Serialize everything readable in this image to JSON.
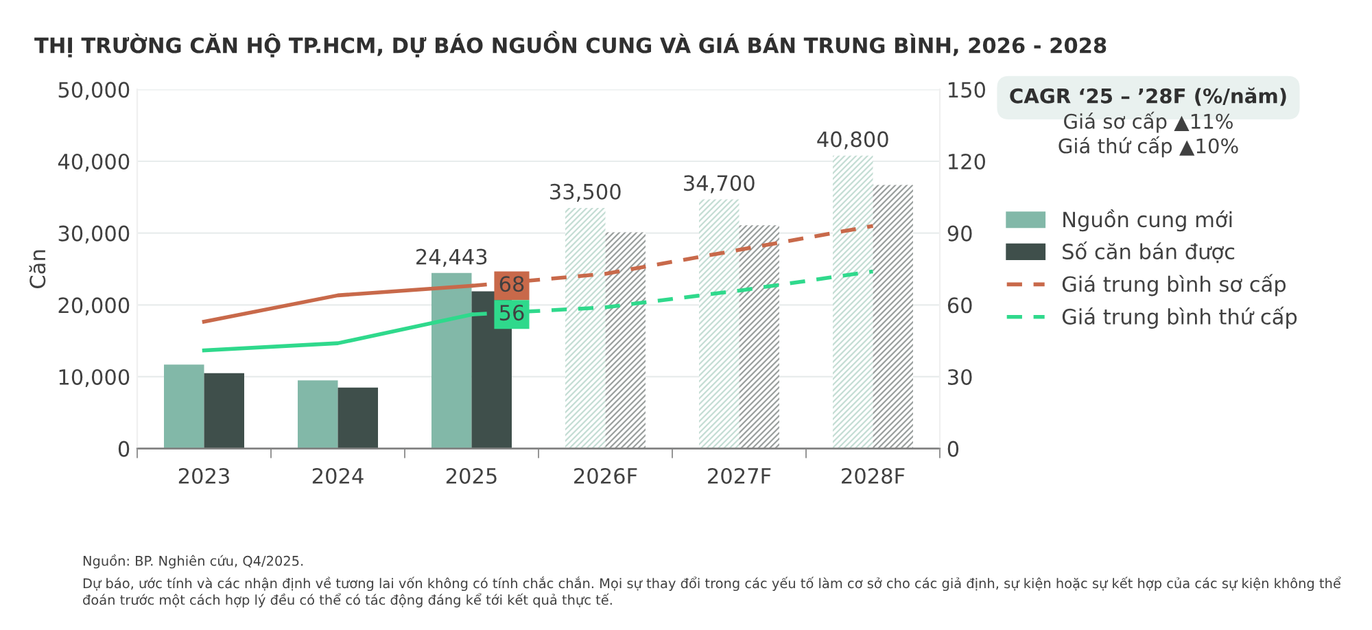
{
  "chart_data": {
    "type": "bar",
    "title": "THỊ TRƯỜNG CĂN HỘ TP.HCM, DỰ BÁO NGUỒN CUNG VÀ GIÁ BÁN TRUNG BÌNH, 2026 - 2028",
    "ylabel": "Căn",
    "categories": [
      "2023",
      "2024",
      "2025",
      "2026F",
      "2027F",
      "2028F"
    ],
    "series": [
      {
        "name": "Nguồn cung mới",
        "color": "#82b8a8",
        "colors": [
          "#82b8a8",
          "#82b8a8",
          "#82b8a8",
          "#c4ddd4",
          "#c4ddd4",
          "#c4ddd4"
        ],
        "values": [
          11700,
          9500,
          24443,
          33500,
          34700,
          40800
        ],
        "value_labels": [
          null,
          null,
          "24,443",
          "33,500",
          "34,700",
          "40,800"
        ]
      },
      {
        "name": "Số căn bán được",
        "color": "#3f4f4b",
        "colors": [
          "#3f4f4b",
          "#3f4f4b",
          "#3f4f4b",
          "#9a9f9e",
          "#9a9f9e",
          "#9a9f9e"
        ],
        "values": [
          10500,
          8500,
          21900,
          30100,
          31100,
          36700
        ]
      },
      {
        "type": "line",
        "axis": "y2",
        "color": "#c8694a",
        "line_style": "solid",
        "values": [
          53,
          64,
          68,
          null,
          null,
          null
        ],
        "value_labels": [
          null,
          null,
          "68",
          null,
          null,
          null
        ]
      },
      {
        "type": "line",
        "axis": "y2",
        "name": "Giá trung bình sơ cấp",
        "color": "#c8694a",
        "line_style": "dashed",
        "values": [
          null,
          null,
          68,
          73,
          83,
          93
        ]
      },
      {
        "type": "line",
        "axis": "y2",
        "color": "#2fd98c",
        "line_style": "solid",
        "values": [
          41,
          44,
          56,
          null,
          null,
          null
        ],
        "value_labels": [
          null,
          null,
          "56",
          null,
          null,
          null
        ]
      },
      {
        "type": "line",
        "axis": "y2",
        "name": "Giá trung bình thứ cấp",
        "color": "#2fd98c",
        "line_style": "dashed",
        "values": [
          null,
          null,
          56,
          59,
          66,
          74
        ]
      }
    ],
    "ylim": [
      0,
      50000
    ],
    "yticks": [
      {
        "value": 0,
        "label": "0"
      },
      {
        "value": 10000,
        "label": "10,000"
      },
      {
        "value": 20000,
        "label": "20,000"
      },
      {
        "value": 30000,
        "label": "30,000"
      },
      {
        "value": 40000,
        "label": "40,000"
      },
      {
        "value": 50000,
        "label": "50,000"
      }
    ],
    "y2lim": [
      0,
      150
    ],
    "y2ticks": [
      0,
      30,
      60,
      90,
      120,
      150
    ],
    "grid": "y",
    "legend": "right",
    "annotations": [
      "CAGR ‘25 – ’28F (%/năm)",
      "Giá sơ cấp ▲11%",
      "Giá thứ cấp ▲10%",
      "Nguồn: BP. Nghiên cứu, Q4/2025.",
      "Dự báo, ước tính và các nhận định về tương lai vốn không có tính chắc chắn. Mọi sự thay đổi trong các yếu tố làm cơ sở cho các giả định, sự kiện hoặc sự kết hợp của các sự kiện không thể đoán trước một cách hợp lý đều có thể có tác động đáng kể tới kết quả thực tế."
    ]
  }
}
